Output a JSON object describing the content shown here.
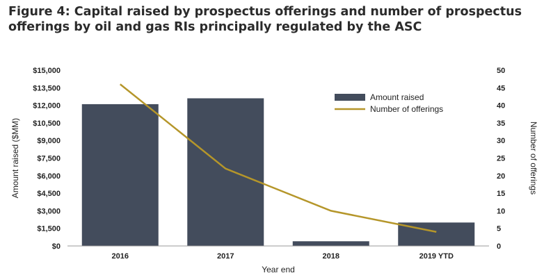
{
  "chart_data": {
    "type": "bar+line",
    "title": "Figure 4: Capital raised by prospectus offerings and number of prospectus offerings by oil and gas RIs principally regulated by the ASC",
    "xlabel": "Year end",
    "ylabel": "Amount raised ($MM)",
    "y2label": "Number of offerings",
    "categories": [
      "2016",
      "2017",
      "2018",
      "2019 YTD"
    ],
    "ylim": [
      0,
      15000
    ],
    "y2lim": [
      0,
      50
    ],
    "yticks": [
      "$0",
      "$1,500",
      "$3,000",
      "$4,500",
      "$6,000",
      "$7,500",
      "$9,000",
      "$10,500",
      "$12,000",
      "$13,500",
      "$15,000"
    ],
    "y2ticks": [
      "0",
      "5",
      "10",
      "15",
      "20",
      "25",
      "30",
      "35",
      "40",
      "45",
      "50"
    ],
    "series": [
      {
        "name": "Amount raised",
        "type": "bar",
        "color": "#434c5c",
        "values": [
          12100,
          12600,
          400,
          2000
        ]
      },
      {
        "name": "Number of offerings",
        "type": "line",
        "color": "#b5962a",
        "values": [
          46,
          22,
          10,
          4
        ]
      }
    ],
    "legend_position": "top-right"
  }
}
